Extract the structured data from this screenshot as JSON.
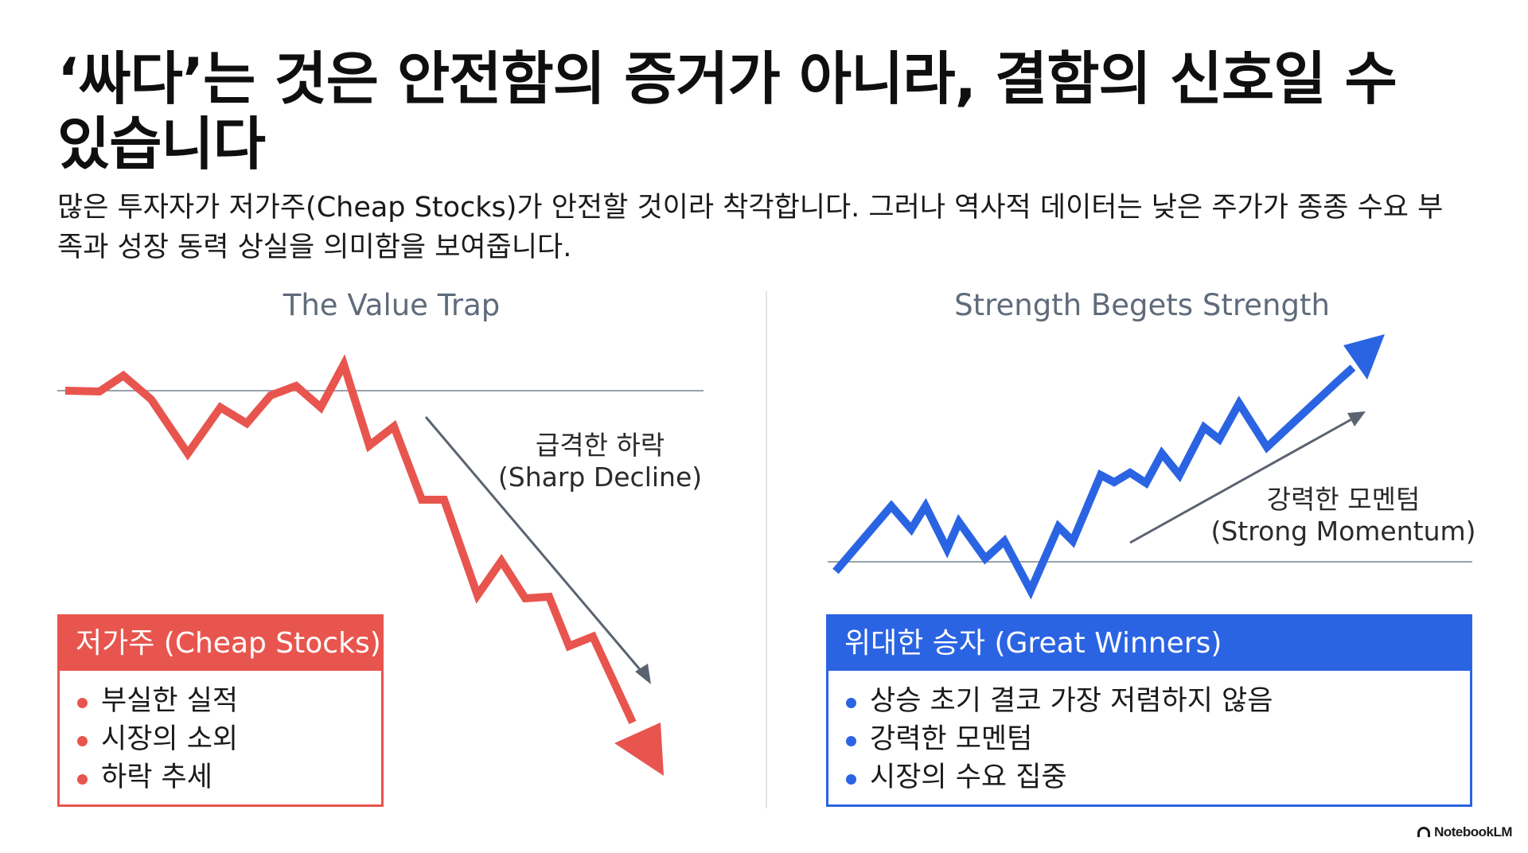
{
  "header": {
    "title": "‘싸다’는 것은 안전함의 증거가 아니라, 결함의 신호일 수 있습니다",
    "subtitle": "많은 투자자가 저가주(Cheap Stocks)가 안전할 것이라 착각합니다. 그러나 역사적 데이터는 낮은 주가가 종종 수요 부족과 성장 동력 상실을 의미함을 보여줍니다."
  },
  "left_panel": {
    "title": "The Value Trap",
    "annotation_line1": "급격한 하락",
    "annotation_line2": "(Sharp Decline)",
    "card_title": "저가주 (Cheap Stocks)",
    "bullets": [
      "부실한 실적",
      "시장의 소외",
      "하락 추세"
    ],
    "color": "#e8554e"
  },
  "right_panel": {
    "title": "Strength Begets Strength",
    "annotation_line1": "강력한 모멘텀",
    "annotation_line2": "(Strong Momentum)",
    "card_title": "위대한 승자 (Great Winners)",
    "bullets": [
      "상승 초기 결코 가장 저렴하지 않음",
      "강력한 모멘텀",
      "시장의 수요 집중"
    ],
    "color": "#2b64e3"
  },
  "branding": {
    "text": "NotebookLM"
  }
}
